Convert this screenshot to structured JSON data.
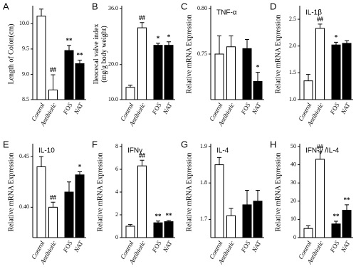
{
  "chart_data": [
    {
      "type": "bar",
      "label": "A",
      "ylabel": [
        "Length of Colon(cm)"
      ],
      "categories": [
        "Control",
        "Antibiotic",
        "FOS",
        "NAT"
      ],
      "values": [
        10.15,
        8.69,
        9.47,
        9.21
      ],
      "errors": [
        0.14,
        0.3,
        0.1,
        0.07
      ],
      "annotations": [
        null,
        "##",
        "**",
        "**"
      ],
      "colors": [
        "#ffffff",
        "#ffffff",
        "#000000",
        "#000000"
      ],
      "ylim": [
        8.5,
        10.3
      ],
      "yticks": [
        8.5,
        {
          "value": 9,
          "label": "9.0"
        },
        9.5,
        {
          "value": 10,
          "label": "10.0"
        }
      ]
    },
    {
      "type": "bar",
      "label": "B",
      "ylabel": [
        "Ileocecal valve index",
        "(mg/g body weight)"
      ],
      "categories": [
        "Control",
        "Antibiotic",
        "FOS",
        "NAT"
      ],
      "values": [
        13.5,
        30.5,
        25.5,
        25.5
      ],
      "errors": [
        0.6,
        1.5,
        0.6,
        1.0
      ],
      "annotations": [
        null,
        "##",
        "*",
        "*"
      ],
      "colors": [
        "#ffffff",
        "#ffffff",
        "#000000",
        "#000000"
      ],
      "ylim": [
        10,
        36
      ],
      "yticks": [
        {
          "value": 10,
          "label": "10.0"
        },
        {
          "value": 20,
          "label": "20.0"
        },
        {
          "value": 36,
          "label": "36.0"
        }
      ]
    },
    {
      "type": "bar",
      "label": "C",
      "title": "TNF-α",
      "ylabel": [
        "Relative mRNA Expression"
      ],
      "categories": [
        "Control",
        "Antibiotic",
        "FOS",
        "NAT"
      ],
      "values": [
        0.75,
        0.758,
        0.756,
        0.72
      ],
      "errors": [
        0.02,
        0.012,
        0.01,
        0.01
      ],
      "annotations": [
        null,
        null,
        null,
        "*"
      ],
      "colors": [
        "#ffffff",
        "#ffffff",
        "#000000",
        "#000000"
      ],
      "ylim": [
        0.7,
        0.8
      ],
      "yticks": [
        0.75,
        {
          "value": 0.8,
          "label": "0.80"
        }
      ]
    },
    {
      "type": "bar",
      "label": "D",
      "title": "IL-1β",
      "ylabel": [
        "Relative mRNA Expression"
      ],
      "categories": [
        "Control",
        "Antibiotic",
        "FOS",
        "NAT"
      ],
      "values": [
        1.35,
        2.33,
        2.02,
        2.05
      ],
      "errors": [
        0.12,
        0.08,
        0.05,
        0.05
      ],
      "annotations": [
        null,
        "##",
        "*",
        null
      ],
      "colors": [
        "#ffffff",
        "#ffffff",
        "#000000",
        "#000000"
      ],
      "ylim": [
        1.0,
        2.7
      ],
      "yticks": [
        {
          "value": 1,
          "label": "1.0"
        },
        1.5,
        {
          "value": 2,
          "label": "2.0"
        },
        2.5
      ]
    },
    {
      "type": "bar",
      "label": "E",
      "title": "IL-10",
      "ylabel": [
        "Relative mRNA Expression"
      ],
      "categories": [
        "Control",
        "Antibiotic",
        "FOS",
        "NAT"
      ],
      "values": [
        0.44,
        0.4,
        0.415,
        0.432
      ],
      "errors": [
        0.01,
        0.005,
        0.01,
        0.003
      ],
      "annotations": [
        null,
        "##",
        null,
        "*"
      ],
      "colors": [
        "#ffffff",
        "#ffffff",
        "#000000",
        "#000000"
      ],
      "ylim": [
        0.37,
        0.46
      ],
      "yticks": [
        {
          "value": 0.4,
          "label": "0.40"
        },
        0.45
      ]
    },
    {
      "type": "bar",
      "label": "F",
      "title": "IFNγ",
      "ylabel": [
        "Relative mRNA Expression"
      ],
      "categories": [
        "Control",
        "Antibiotic",
        "FOS",
        "NAT"
      ],
      "values": [
        1.0,
        6.3,
        1.3,
        1.4
      ],
      "errors": [
        0.15,
        0.5,
        0.15,
        0.1
      ],
      "annotations": [
        null,
        "##",
        "**",
        "**"
      ],
      "colors": [
        "#ffffff",
        "#ffffff",
        "#000000",
        "#000000"
      ],
      "ylim": [
        0,
        8
      ],
      "yticks": [
        0,
        2,
        4,
        6,
        8
      ]
    },
    {
      "type": "bar",
      "label": "G",
      "title": "IL-4",
      "ylabel": [
        "Relative mRNA Expression"
      ],
      "categories": [
        "Control",
        "Antibiotic",
        "FOS",
        "NAT"
      ],
      "values": [
        1.85,
        1.71,
        1.74,
        1.75
      ],
      "errors": [
        0.02,
        0.02,
        0.04,
        0.03
      ],
      "annotations": [
        null,
        null,
        null,
        null
      ],
      "colors": [
        "#ffffff",
        "#ffffff",
        "#000000",
        "#000000"
      ],
      "ylim": [
        1.65,
        1.9
      ],
      "yticks": [
        1.7,
        1.8,
        1.9
      ]
    },
    {
      "type": "bar",
      "label": "H",
      "title": "IFN-γ /IL-4",
      "ylabel": [
        "Relative mRNA Expression"
      ],
      "categories": [
        "Control",
        "Antibiotic",
        "FOS",
        "NAT"
      ],
      "values": [
        5,
        43,
        7.5,
        15
      ],
      "errors": [
        1.5,
        4,
        1.5,
        3
      ],
      "annotations": [
        null,
        "##",
        "**",
        "**"
      ],
      "colors": [
        "#ffffff",
        "#ffffff",
        "#000000",
        "#000000"
      ],
      "ylim": [
        0,
        50
      ],
      "yticks": [
        0,
        10,
        20,
        30,
        40,
        50
      ]
    }
  ]
}
